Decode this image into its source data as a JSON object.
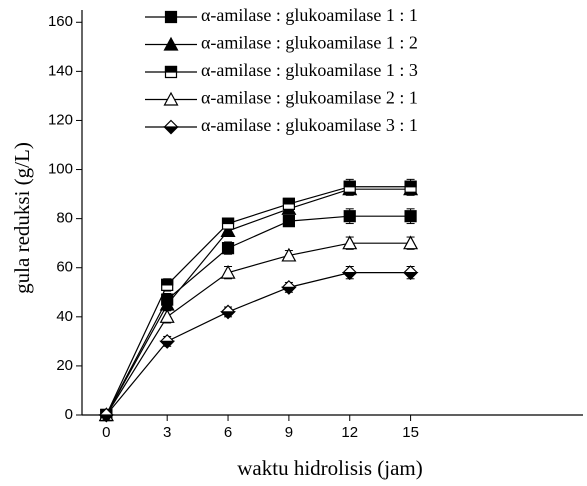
{
  "chart_data": {
    "type": "line",
    "x_label": "waktu hidrolisis (jam)",
    "y_label": "gula reduksi (g/L)",
    "x": [
      0,
      3,
      6,
      9,
      12,
      15
    ],
    "xlim": [
      -1.2,
      23.5
    ],
    "xticks": [
      0,
      3,
      6,
      9,
      12,
      15
    ],
    "ylim": [
      0,
      165
    ],
    "yticks": [
      0,
      20,
      40,
      60,
      80,
      100,
      120,
      140,
      160
    ],
    "legend": "top-left",
    "series": [
      {
        "name": "α-amilase : glukoamilase 1 : 1",
        "color": "#000000",
        "marker": "square-filled",
        "values": [
          0,
          47,
          68,
          79,
          81,
          81
        ],
        "errors": [
          2,
          2.5,
          2.5,
          2,
          3,
          3
        ]
      },
      {
        "name": "α-amilase : glukoamilase 1 : 2",
        "color": "#000000",
        "marker": "triangle-filled",
        "values": [
          0,
          45,
          75,
          84,
          92,
          92
        ],
        "errors": [
          2,
          2.5,
          2,
          2,
          2.5,
          2.5
        ]
      },
      {
        "name": "α-amilase : glukoamilase 1 : 3",
        "color": "#000000",
        "marker": "square-half",
        "values": [
          0,
          53,
          78,
          86,
          93,
          93
        ],
        "errors": [
          2,
          2.5,
          2,
          2,
          3,
          3
        ]
      },
      {
        "name": "α-amilase : glukoamilase 2 : 1",
        "color": "#000000",
        "marker": "triangle-open",
        "values": [
          0,
          40,
          58,
          65,
          70,
          70
        ],
        "errors": [
          2,
          2.5,
          2.5,
          2,
          2.5,
          2.5
        ]
      },
      {
        "name": "α-amilase : glukoamilase 3 : 1",
        "color": "#000000",
        "marker": "diamond-half",
        "values": [
          0,
          30,
          42,
          52,
          58,
          58
        ],
        "errors": [
          2,
          2,
          2,
          2,
          2.5,
          2.5
        ]
      }
    ]
  }
}
